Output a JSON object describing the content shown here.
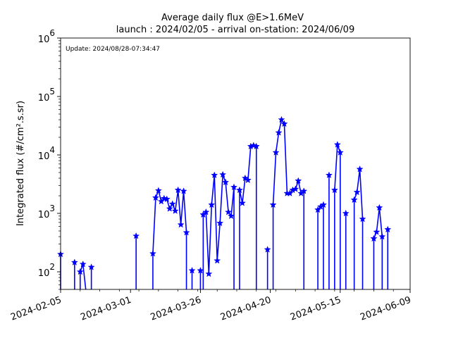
{
  "chart_data": {
    "type": "line",
    "title_line1": "Average daily flux @E>1.6MeV",
    "title_line2": "launch : 2024/02/05 - arrival on-station: 2024/06/09",
    "ylabel": "Integrated flux (#/cm².s.sr)",
    "annotation": "Update: 2024/08/28-07:34:47",
    "yscale": "log",
    "ylim": [
      50,
      1000000
    ],
    "xlim": [
      "2024-02-05",
      "2024-06-09"
    ],
    "xticks": [
      "2024-02-05",
      "2024-03-01",
      "2024-03-26",
      "2024-04-20",
      "2024-05-15",
      "2024-06-09"
    ],
    "yticks": [
      {
        "value": 100,
        "base": "10",
        "exp": "2"
      },
      {
        "value": 1000,
        "base": "10",
        "exp": "3"
      },
      {
        "value": 10000,
        "base": "10",
        "exp": "4"
      },
      {
        "value": 100000,
        "base": "10",
        "exp": "5"
      },
      {
        "value": 1000000,
        "base": "10",
        "exp": "6"
      }
    ],
    "color": "#0000ff",
    "marker": "star",
    "segments": [
      [
        [
          "2024-02-05",
          200
        ],
        [
          "2024-02-05",
          50
        ]
      ],
      [
        [
          "2024-02-10",
          50
        ],
        [
          "2024-02-10",
          145
        ]
      ],
      [
        [
          "2024-02-12",
          50
        ],
        [
          "2024-02-12",
          100
        ],
        [
          "2024-02-13",
          135
        ],
        [
          "2024-02-14",
          50
        ]
      ],
      [
        [
          "2024-02-16",
          50
        ],
        [
          "2024-02-16",
          120
        ]
      ],
      [
        [
          "2024-03-03",
          50
        ],
        [
          "2024-03-03",
          410
        ]
      ],
      [
        [
          "2024-03-09",
          50
        ],
        [
          "2024-03-09",
          205
        ],
        [
          "2024-03-10",
          1850
        ],
        [
          "2024-03-11",
          2450
        ],
        [
          "2024-03-12",
          1600
        ],
        [
          "2024-03-13",
          1800
        ],
        [
          "2024-03-14",
          1750
        ],
        [
          "2024-03-15",
          1200
        ],
        [
          "2024-03-16",
          1450
        ],
        [
          "2024-03-17",
          1100
        ],
        [
          "2024-03-18",
          2500
        ],
        [
          "2024-03-19",
          640
        ],
        [
          "2024-03-20",
          2400
        ],
        [
          "2024-03-21",
          470
        ],
        [
          "2024-03-21",
          50
        ]
      ],
      [
        [
          "2024-03-23",
          50
        ],
        [
          "2024-03-23",
          105
        ]
      ],
      [
        [
          "2024-03-26",
          50
        ],
        [
          "2024-03-26",
          105
        ]
      ],
      [
        [
          "2024-03-27",
          50
        ],
        [
          "2024-03-27",
          950
        ],
        [
          "2024-03-28",
          1050
        ],
        [
          "2024-03-29",
          92
        ],
        [
          "2024-03-30",
          1400
        ],
        [
          "2024-03-31",
          4500
        ],
        [
          "2024-04-01",
          155
        ],
        [
          "2024-04-02",
          680
        ],
        [
          "2024-04-03",
          4600
        ],
        [
          "2024-04-04",
          3400
        ],
        [
          "2024-04-05",
          1050
        ],
        [
          "2024-04-06",
          900
        ],
        [
          "2024-04-07",
          2800
        ],
        [
          "2024-04-07",
          50
        ]
      ],
      [
        [
          "2024-04-09",
          50
        ],
        [
          "2024-04-09",
          2500
        ],
        [
          "2024-04-10",
          1500
        ],
        [
          "2024-04-11",
          4000
        ],
        [
          "2024-04-12",
          3700
        ],
        [
          "2024-04-13",
          14000
        ],
        [
          "2024-04-14",
          14500
        ],
        [
          "2024-04-15",
          14000
        ],
        [
          "2024-04-15",
          50
        ]
      ],
      [
        [
          "2024-04-19",
          50
        ],
        [
          "2024-04-19",
          240
        ]
      ],
      [
        [
          "2024-04-21",
          50
        ],
        [
          "2024-04-21",
          1400
        ],
        [
          "2024-04-22",
          11000
        ],
        [
          "2024-04-23",
          24000
        ],
        [
          "2024-04-24",
          40000
        ],
        [
          "2024-04-25",
          34000
        ],
        [
          "2024-04-26",
          2200
        ],
        [
          "2024-04-27",
          2200
        ],
        [
          "2024-04-28",
          2500
        ],
        [
          "2024-04-29",
          2600
        ],
        [
          "2024-04-30",
          3600
        ],
        [
          "2024-05-01",
          2200
        ],
        [
          "2024-05-02",
          2400
        ],
        [
          "2024-05-02",
          50
        ]
      ],
      [
        [
          "2024-05-07",
          50
        ],
        [
          "2024-05-07",
          1150
        ],
        [
          "2024-05-08",
          1300
        ],
        [
          "2024-05-09",
          1400
        ],
        [
          "2024-05-09",
          50
        ]
      ],
      [
        [
          "2024-05-11",
          50
        ],
        [
          "2024-05-11",
          4500
        ],
        [
          "2024-05-11",
          50
        ]
      ],
      [
        [
          "2024-05-13",
          50
        ],
        [
          "2024-05-13",
          2500
        ],
        [
          "2024-05-14",
          15000
        ],
        [
          "2024-05-15",
          11000
        ],
        [
          "2024-05-15",
          50
        ]
      ],
      [
        [
          "2024-05-17",
          50
        ],
        [
          "2024-05-17",
          1000
        ]
      ],
      [
        [
          "2024-05-20",
          50
        ],
        [
          "2024-05-20",
          1700
        ],
        [
          "2024-05-21",
          2300
        ],
        [
          "2024-05-22",
          5700
        ],
        [
          "2024-05-23",
          800
        ],
        [
          "2024-05-23",
          50
        ]
      ],
      [
        [
          "2024-05-27",
          50
        ],
        [
          "2024-05-27",
          370
        ],
        [
          "2024-05-28",
          480
        ],
        [
          "2024-05-29",
          1250
        ],
        [
          "2024-05-30",
          400
        ],
        [
          "2024-05-30",
          50
        ]
      ],
      [
        [
          "2024-06-01",
          50
        ],
        [
          "2024-06-01",
          530
        ]
      ]
    ]
  }
}
